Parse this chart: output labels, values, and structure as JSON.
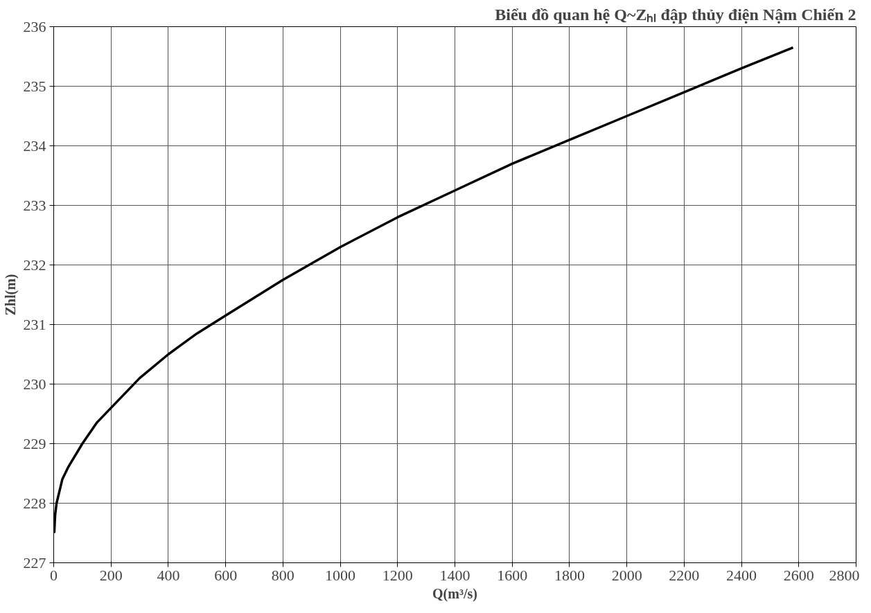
{
  "chart_data": {
    "type": "line",
    "title": "Biểu đồ quan hệ Q~Zₕₗ đập thủy điện Nậm Chiến 2",
    "xlabel": "Q(m³/s)",
    "ylabel": "Zhl(m)",
    "x": [
      2,
      5,
      10,
      20,
      30,
      50,
      100,
      150,
      200,
      300,
      400,
      500,
      600,
      800,
      1000,
      1200,
      1400,
      1600,
      1800,
      2000,
      2200,
      2400,
      2580
    ],
    "series": [
      {
        "color": "#000000",
        "values": [
          227.5,
          227.8,
          228.0,
          228.2,
          228.4,
          228.6,
          229.0,
          229.35,
          229.6,
          230.1,
          230.5,
          230.85,
          231.15,
          231.75,
          232.3,
          232.8,
          233.25,
          233.7,
          234.1,
          234.5,
          234.9,
          235.3,
          235.65
        ]
      }
    ],
    "xlim": [
      0,
      2800
    ],
    "ylim": [
      227,
      236
    ],
    "xticks": [
      0,
      200,
      400,
      600,
      800,
      1000,
      1200,
      1400,
      1600,
      1800,
      2000,
      2200,
      2400,
      2600,
      2800
    ],
    "yticks": [
      227,
      228,
      229,
      230,
      231,
      232,
      233,
      234,
      235,
      236
    ],
    "grid": true
  }
}
